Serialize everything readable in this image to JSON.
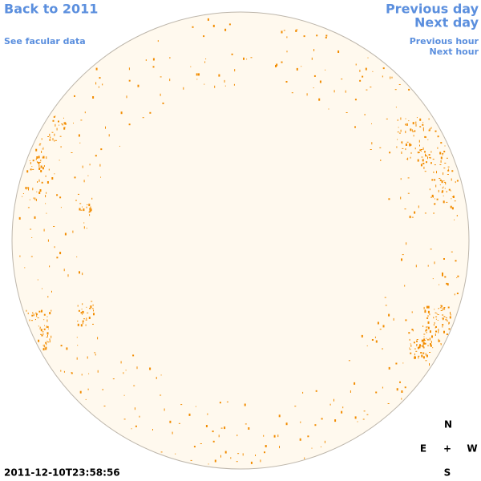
{
  "header": {
    "back_link": "Back to 2011",
    "facular_link": "See facular data",
    "previous_day": "Previous day",
    "next_day": "Next day",
    "previous_hour": "Previous hour",
    "next_hour": "Next hour"
  },
  "compass": {
    "north": "N",
    "east": "E",
    "center": "+",
    "west": "W",
    "south": "S"
  },
  "timestamp": "2011-12-10T23:58:56"
}
